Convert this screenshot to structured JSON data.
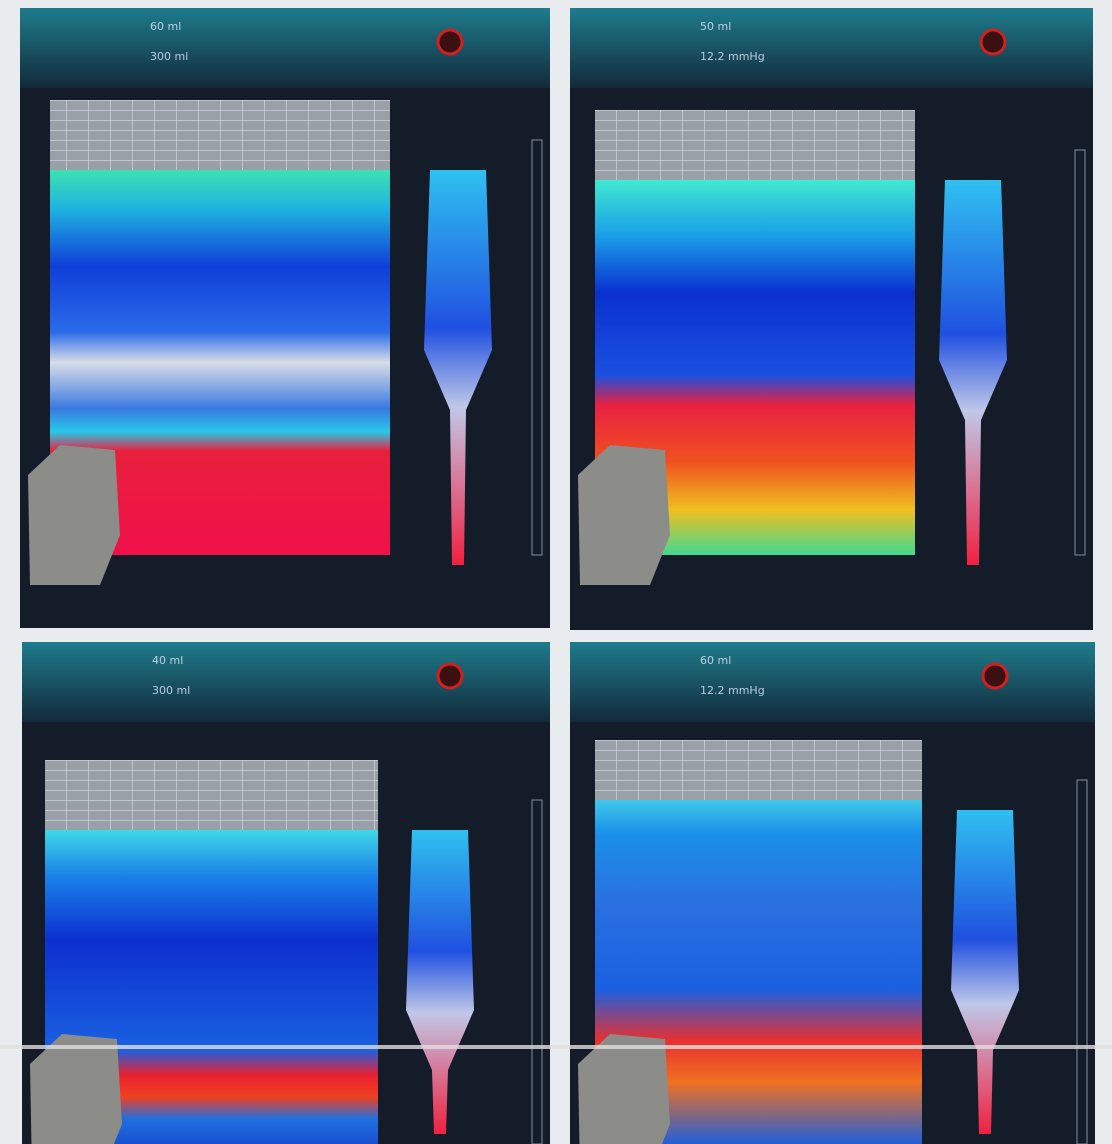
{
  "panels": [
    {
      "labels": [
        "60 ml",
        "300 ml"
      ]
    },
    {
      "labels": [
        "50 ml",
        "12.2 mmHg"
      ]
    },
    {
      "labels": [
        "40 ml",
        "300 ml"
      ]
    },
    {
      "labels": [
        "60 ml",
        "12.2 mmHg"
      ]
    }
  ]
}
